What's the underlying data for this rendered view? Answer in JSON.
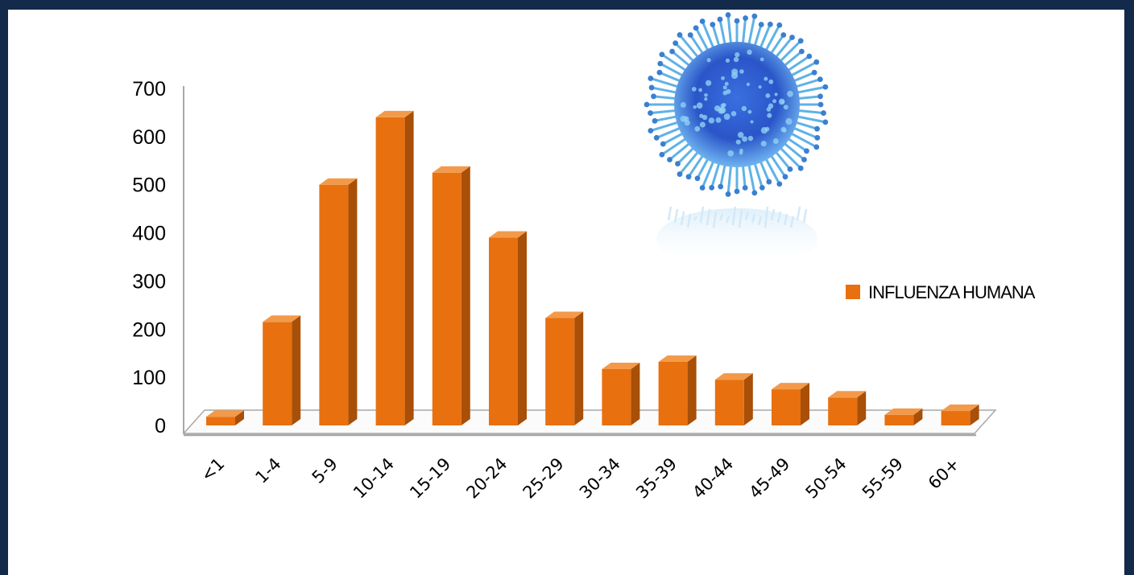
{
  "chart_data": {
    "type": "bar",
    "style": "3d-column",
    "categories": [
      "<1",
      "1-4",
      "5-9",
      "10-14",
      "15-19",
      "20-24",
      "25-29",
      "30-34",
      "35-39",
      "40-44",
      "45-49",
      "50-54",
      "55-59",
      "60+"
    ],
    "series": [
      {
        "name": "INFLUENZA HUMANA",
        "values": [
          18,
          215,
          500,
          640,
          525,
          390,
          223,
          117,
          132,
          95,
          75,
          58,
          22,
          30
        ]
      }
    ],
    "yticks": [
      0,
      100,
      200,
      300,
      400,
      500,
      600,
      700
    ],
    "ylim": [
      0,
      700
    ],
    "legend_position": "right",
    "grid": false,
    "colors": {
      "bar_front": "#e8700f",
      "bar_side": "#a84f08",
      "bar_top": "#f39a4a",
      "axis": "#a8a8a8",
      "frame_background": "#142a4a"
    }
  },
  "decoration": {
    "image": "influenza-virus-illustration"
  }
}
